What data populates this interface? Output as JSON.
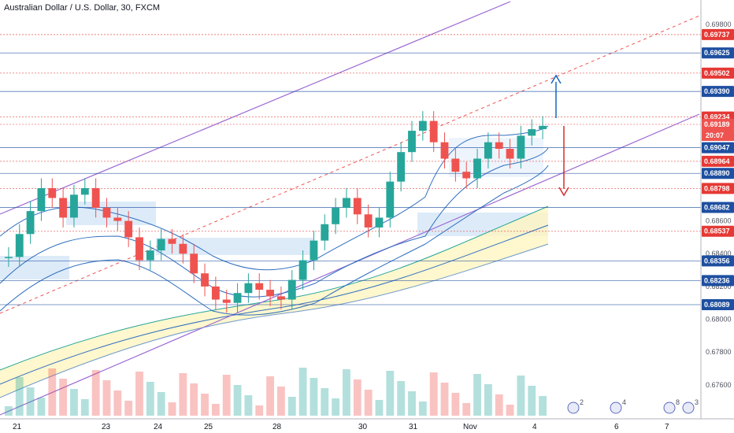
{
  "header": {
    "title": "Australian Dollar / U.S. Dollar, 30, FXCM"
  },
  "colors": {
    "up": "#26a69a",
    "down": "#ef5350",
    "channel": "#9c6ad3",
    "support": "#1e4fa0",
    "resistance": "#e53935",
    "band_fill": "#fff5c2",
    "zone_fill": "#cfe3f7",
    "arrow_up": "#1565c0",
    "arrow_down": "#d32f2f"
  },
  "chart_data": {
    "type": "candlestick",
    "title": "Australian Dollar / U.S. Dollar, 30, FXCM",
    "ylim": [
      0.6745,
      0.699
    ],
    "y_ticks": [
      "0.69800",
      "0.68600",
      "0.68400",
      "0.68200",
      "0.68000",
      "0.67800",
      "0.67600"
    ],
    "x_ticks": [
      "21",
      "23",
      "24",
      "25",
      "28",
      "30",
      "31",
      "Nov",
      "4",
      "6",
      "7"
    ],
    "price_levels": [
      {
        "label": "0.69737",
        "value": 0.69737,
        "kind": "resistance"
      },
      {
        "label": "0.69625",
        "value": 0.69625,
        "kind": "support"
      },
      {
        "label": "0.69502",
        "value": 0.69502,
        "kind": "resistance"
      },
      {
        "label": "0.69390",
        "value": 0.6939,
        "kind": "support"
      },
      {
        "label": "0.69234",
        "value": 0.69234,
        "kind": "resistance"
      },
      {
        "label": "0.69189",
        "value": 0.69189,
        "kind": "last"
      },
      {
        "label": "0.69047",
        "value": 0.69047,
        "kind": "support"
      },
      {
        "label": "0.68964",
        "value": 0.68964,
        "kind": "resistance"
      },
      {
        "label": "0.68890",
        "value": 0.6889,
        "kind": "support"
      },
      {
        "label": "0.68798",
        "value": 0.68798,
        "kind": "resistance"
      },
      {
        "label": "0.68682",
        "value": 0.68682,
        "kind": "support"
      },
      {
        "label": "0.68537",
        "value": 0.68537,
        "kind": "resistance"
      },
      {
        "label": "0.68356",
        "value": 0.68356,
        "kind": "support"
      },
      {
        "label": "0.68236",
        "value": 0.68236,
        "kind": "support"
      },
      {
        "label": "0.68089",
        "value": 0.68089,
        "kind": "support"
      }
    ],
    "countdown_label": "20:07",
    "price_series": [
      0.6838,
      0.6852,
      0.6866,
      0.688,
      0.6874,
      0.6862,
      0.6876,
      0.688,
      0.6868,
      0.6862,
      0.686,
      0.685,
      0.6836,
      0.6842,
      0.6849,
      0.6846,
      0.684,
      0.6828,
      0.682,
      0.6812,
      0.681,
      0.6816,
      0.6822,
      0.6818,
      0.6814,
      0.6812,
      0.6824,
      0.6836,
      0.6848,
      0.6858,
      0.6868,
      0.6874,
      0.6864,
      0.6856,
      0.6862,
      0.6884,
      0.6902,
      0.6915,
      0.6921,
      0.6908,
      0.6898,
      0.689,
      0.6886,
      0.6898,
      0.6908,
      0.6904,
      0.6898,
      0.6912,
      0.6916,
      0.6918
    ]
  },
  "event_markers": [
    {
      "count": "2"
    },
    {
      "count": "4"
    },
    {
      "count": "8"
    },
    {
      "count": "3"
    }
  ]
}
